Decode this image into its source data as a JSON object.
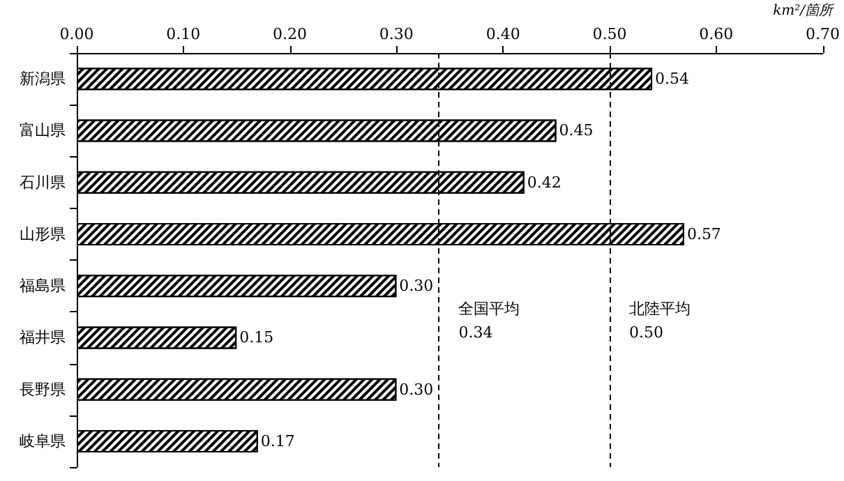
{
  "chart_data": {
    "type": "bar",
    "orientation": "horizontal",
    "xlabel": "km²/箇所",
    "categories": [
      "新潟県",
      "富山県",
      "石川県",
      "山形県",
      "福島県",
      "福井県",
      "長野県",
      "岐阜県"
    ],
    "values": [
      0.54,
      0.45,
      0.42,
      0.57,
      0.3,
      0.15,
      0.3,
      0.17
    ],
    "value_labels": [
      "0.54",
      "0.45",
      "0.42",
      "0.57",
      "0.30",
      "0.15",
      "0.30",
      "0.17"
    ],
    "color": "#ffffff",
    "xlim": [
      0,
      0.7
    ],
    "xticks": [
      "0.00",
      "0.10",
      "0.20",
      "0.30",
      "0.40",
      "0.50",
      "0.60",
      "0.70"
    ],
    "ref_lines": [
      {
        "axis": "x",
        "value": 0.34,
        "label": "全国平均\n0.34",
        "line_style": "dashed",
        "color": "#000000"
      },
      {
        "axis": "x",
        "value": 0.5,
        "label": "北陸平均\n0.50",
        "line_style": "dashed",
        "color": "#000000"
      }
    ],
    "grid": false
  }
}
